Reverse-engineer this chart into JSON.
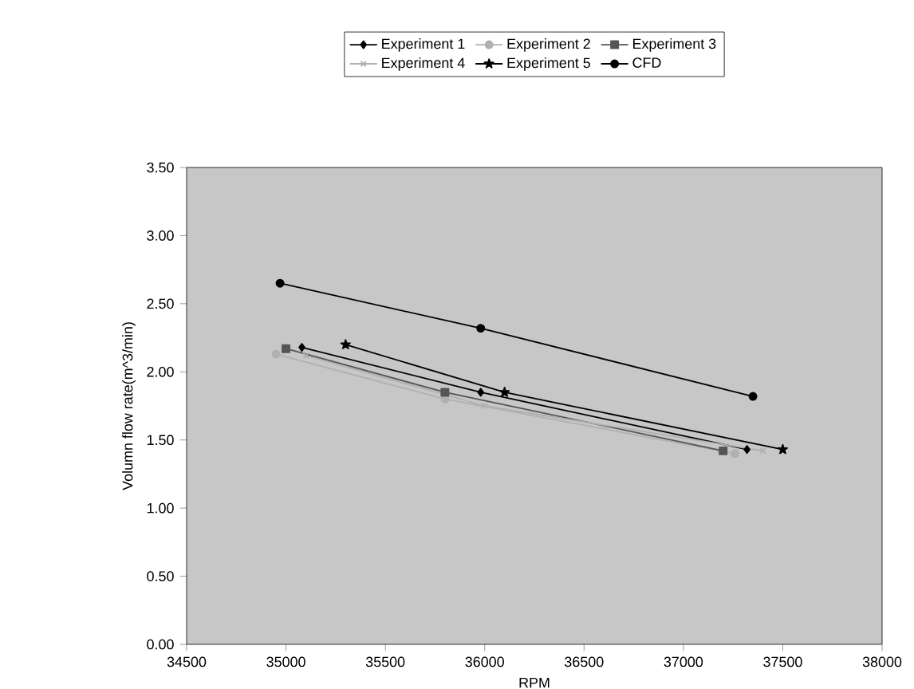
{
  "chart_data": {
    "type": "line",
    "xlabel": "RPM",
    "ylabel": "Volumn flow rate(m^3/min)",
    "xlim": [
      34500,
      38000
    ],
    "xticks": [
      34500,
      35000,
      35500,
      36000,
      36500,
      37000,
      37500,
      38000
    ],
    "ylim": [
      0,
      3.5
    ],
    "yticks": [
      {
        "value": 0,
        "label": "0.00"
      },
      {
        "value": 0.5,
        "label": "0.50"
      },
      {
        "value": 1,
        "label": "1.00"
      },
      {
        "value": 1.5,
        "label": "1.50"
      },
      {
        "value": 2,
        "label": "2.00"
      },
      {
        "value": 2.5,
        "label": "2.50"
      },
      {
        "value": 3,
        "label": "3.00"
      },
      {
        "value": 3.5,
        "label": "3.50"
      }
    ],
    "grid": false,
    "legend": "top",
    "line_style": "solid",
    "series": [
      {
        "name": "Experiment 1",
        "color": "#000000",
        "marker": "diamond",
        "x": [
          35080,
          35980,
          37320
        ],
        "values": [
          2.18,
          1.85,
          1.43
        ]
      },
      {
        "name": "Experiment 2",
        "color": "#b0b0b0",
        "marker": "circle",
        "x": [
          34950,
          35800,
          37260
        ],
        "values": [
          2.13,
          1.8,
          1.4
        ]
      },
      {
        "name": "Experiment 3",
        "color": "#555555",
        "marker": "square",
        "x": [
          35000,
          35800,
          37200
        ],
        "values": [
          2.17,
          1.85,
          1.42
        ]
      },
      {
        "name": "Experiment 4",
        "color": "#b0b0b0",
        "marker": "cross",
        "x": [
          35100,
          36000,
          37400
        ],
        "values": [
          2.12,
          1.75,
          1.42
        ]
      },
      {
        "name": "Experiment 5",
        "color": "#000000",
        "marker": "star",
        "x": [
          35300,
          36100,
          37500
        ],
        "values": [
          2.2,
          1.85,
          1.43
        ]
      },
      {
        "name": "CFD",
        "color": "#000000",
        "marker": "circle",
        "x": [
          34970,
          35980,
          37350
        ],
        "values": [
          2.65,
          2.32,
          1.82
        ]
      }
    ]
  }
}
